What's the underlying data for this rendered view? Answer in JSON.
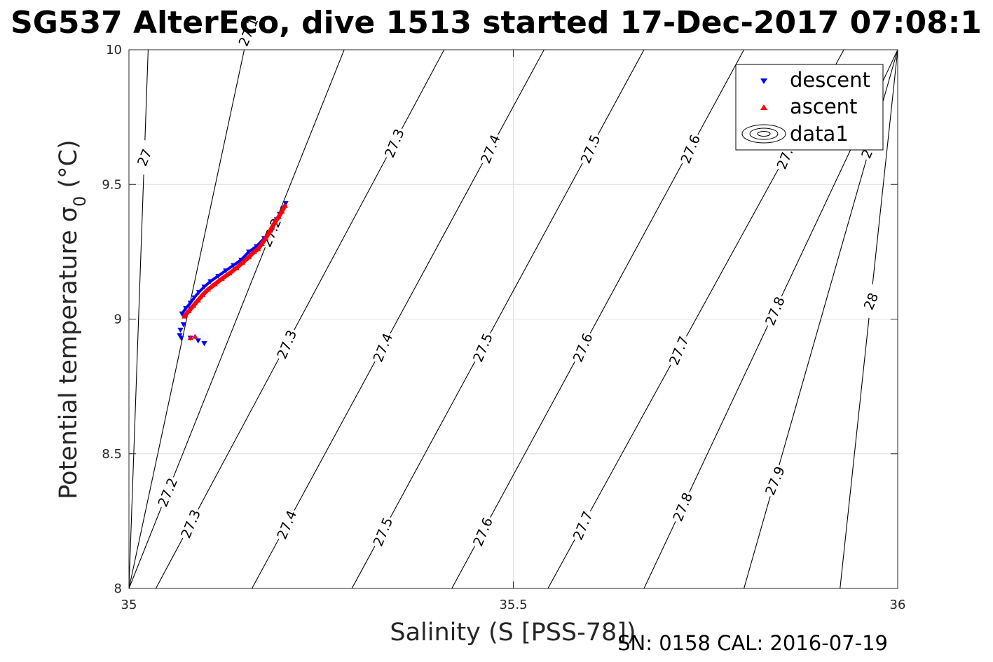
{
  "chart_data": {
    "type": "scatter",
    "title": "SG537 AlterEco, dive 1513 started 17-Dec-2017 07:08:1",
    "xlabel": "Salinity (S [PSS-78])",
    "ylabel_main": "Potential temperature σ",
    "ylabel_sub": "0",
    "ylabel_unit": " (°C)",
    "xlim": [
      35,
      36
    ],
    "ylim": [
      8,
      10
    ],
    "x_ticks": [
      35,
      35.5,
      36
    ],
    "x_tick_labels": [
      "35",
      "35.5",
      "36"
    ],
    "y_ticks": [
      8,
      8.5,
      9,
      9.5,
      10
    ],
    "y_tick_labels": [
      "8",
      "8.5",
      "9",
      "9.5",
      "10"
    ],
    "grid": true,
    "legend_position": "top-right",
    "footer": "SN: 0158  CAL: 2016-07-19",
    "colors": {
      "descent": "#0000ff",
      "ascent": "#ff0000",
      "contour": "#000000",
      "grid": "#dfdfdf"
    },
    "series": [
      {
        "name": "descent",
        "marker": "triangle-down",
        "x": [
          35.204,
          35.2,
          35.196,
          35.192,
          35.189,
          35.186,
          35.176,
          35.166,
          35.156,
          35.146,
          35.136,
          35.126,
          35.116,
          35.106,
          35.098,
          35.091,
          35.085,
          35.08,
          35.074,
          35.069,
          35.071,
          35.067,
          35.066,
          35.068,
          35.08,
          35.09,
          35.098
        ],
        "y": [
          9.43,
          9.41,
          9.39,
          9.37,
          9.35,
          9.33,
          9.3,
          9.27,
          9.25,
          9.22,
          9.2,
          9.18,
          9.16,
          9.14,
          9.12,
          9.1,
          9.08,
          9.06,
          9.04,
          9.02,
          8.98,
          8.96,
          8.94,
          8.93,
          8.93,
          8.92,
          8.91
        ]
      },
      {
        "name": "ascent",
        "marker": "triangle-up",
        "x": [
          35.203,
          35.199,
          35.195,
          35.19,
          35.186,
          35.182,
          35.178,
          35.173,
          35.168,
          35.163,
          35.156,
          35.148,
          35.14,
          35.131,
          35.121,
          35.112,
          35.103,
          35.096,
          35.09,
          35.084,
          35.078,
          35.072,
          35.086,
          35.08
        ],
        "y": [
          9.42,
          9.4,
          9.38,
          9.36,
          9.34,
          9.32,
          9.3,
          9.28,
          9.26,
          9.25,
          9.23,
          9.21,
          9.19,
          9.17,
          9.15,
          9.13,
          9.11,
          9.09,
          9.07,
          9.05,
          9.03,
          9.01,
          8.935,
          8.93
        ]
      }
    ],
    "contour_legend_label": "data1",
    "contours": [
      {
        "label": "27",
        "s0": 35.0,
        "s1": 35.025,
        "label_s": 35.02
      },
      {
        "label": "27.1",
        "s0": 35.0,
        "s1": 35.15,
        "label_s": 35.155
      },
      {
        "label": "27.2",
        "s0": 35.0,
        "s1": 35.28,
        "label_s": 35.05
      },
      {
        "label": "27.2",
        "s0": 35.0,
        "s1": 35.28,
        "label_s": 35.185
      },
      {
        "label": "27.3",
        "s0": 35.035,
        "s1": 35.41,
        "label_s": 35.08
      },
      {
        "label": "27.3",
        "s0": 35.035,
        "s1": 35.41,
        "label_s": 35.205
      },
      {
        "label": "27.3",
        "s0": 35.035,
        "s1": 35.41,
        "label_s": 35.345
      },
      {
        "label": "27.4",
        "s0": 35.16,
        "s1": 35.54,
        "label_s": 35.205
      },
      {
        "label": "27.4",
        "s0": 35.16,
        "s1": 35.54,
        "label_s": 35.33
      },
      {
        "label": "27.4",
        "s0": 35.16,
        "s1": 35.54,
        "label_s": 35.47
      },
      {
        "label": "27.5",
        "s0": 35.29,
        "s1": 35.67,
        "label_s": 35.33
      },
      {
        "label": "27.5",
        "s0": 35.29,
        "s1": 35.67,
        "label_s": 35.46
      },
      {
        "label": "27.5",
        "s0": 35.29,
        "s1": 35.67,
        "label_s": 35.6
      },
      {
        "label": "27.6",
        "s0": 35.42,
        "s1": 35.8,
        "label_s": 35.46
      },
      {
        "label": "27.6",
        "s0": 35.42,
        "s1": 35.8,
        "label_s": 35.59
      },
      {
        "label": "27.6",
        "s0": 35.42,
        "s1": 35.8,
        "label_s": 35.73
      },
      {
        "label": "27.7",
        "s0": 35.545,
        "s1": 35.93,
        "label_s": 35.59
      },
      {
        "label": "27.7",
        "s0": 35.545,
        "s1": 35.93,
        "label_s": 35.715
      },
      {
        "label": "27.7",
        "s0": 35.545,
        "s1": 35.93,
        "label_s": 35.855
      },
      {
        "label": "27.8",
        "s0": 35.67,
        "s1": 36.0,
        "label_s": 35.72
      },
      {
        "label": "27.8",
        "s0": 35.67,
        "s1": 36.0,
        "label_s": 35.84
      },
      {
        "label": "27.8",
        "s0": 35.67,
        "s1": 36.0,
        "label_s": 35.965
      },
      {
        "label": "27.9",
        "s0": 35.8,
        "s1": 36.0,
        "label_s": 35.84
      },
      {
        "label": "27.9",
        "s0": 35.8,
        "s1": 36.0,
        "label_s": 35.965
      },
      {
        "label": "28",
        "s0": 35.925,
        "s1": 36.0,
        "label_s": 35.965
      }
    ]
  }
}
